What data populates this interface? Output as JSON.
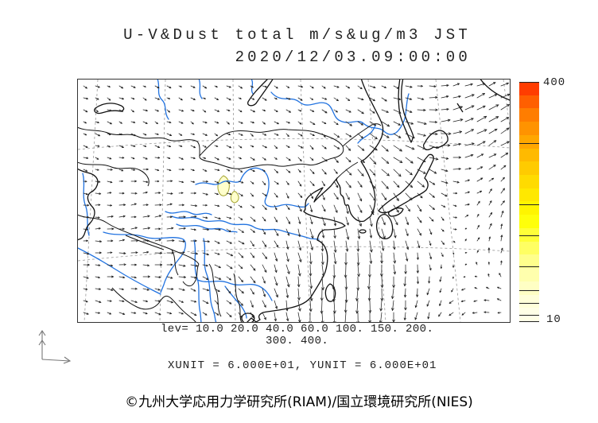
{
  "title": {
    "line1": "U-V&Dust total m/s&ug/m3 JST",
    "line2": "2020/12/03.09:00:00"
  },
  "legend": {
    "lev_line1": "lev= 10.0 20.0 40.0 60.0 100. 150. 200.",
    "lev_line2": "300. 400.",
    "unit_line": "XUNIT = 6.000E+01, YUNIT = 6.000E+01"
  },
  "colorbar": {
    "max_label": "400",
    "min_label": "10",
    "min_value": 10,
    "max_value": 400,
    "tick_values": [
      10,
      20,
      40,
      60,
      100,
      150,
      200,
      300,
      400
    ],
    "colors_bottom_to_top": [
      "#FFFFE6",
      "#FFFFD9",
      "#FFFFC4",
      "#FFFFAD",
      "#FFFF8C",
      "#FFFF63",
      "#FFFF38",
      "#FFFF0A",
      "#FFF500",
      "#FFE800",
      "#FFDB00",
      "#FFCB00",
      "#FFBA00",
      "#FFA700",
      "#FF9300",
      "#FF7D00",
      "#FF5F00",
      "#FF3D00"
    ]
  },
  "footer": {
    "copyright": "©九州大学応用力学研究所(RIAM)/国立環境研究所(NIES)"
  },
  "chart_data": {
    "type": "heatmap",
    "title": "U-V&Dust total m/s&ug/m3 JST",
    "timestamp": "2020/12/03.09:00:00",
    "scalar_units": "ug/m3",
    "vector_units": "m/s",
    "contour_levels": [
      10.0,
      20.0,
      40.0,
      60.0,
      100.0,
      150.0,
      200.0,
      300.0,
      400.0
    ],
    "colorbar_range": [
      10,
      400
    ],
    "xunit": "6.000E+01",
    "yunit": "6.000E+01",
    "legend_position": "right",
    "notes_colors": {
      "river": "#2273E0",
      "coast": "#111111",
      "graticule": "#999999",
      "dust_fill": "#FFFFCC",
      "dust_outline": "#A3A32E"
    }
  }
}
